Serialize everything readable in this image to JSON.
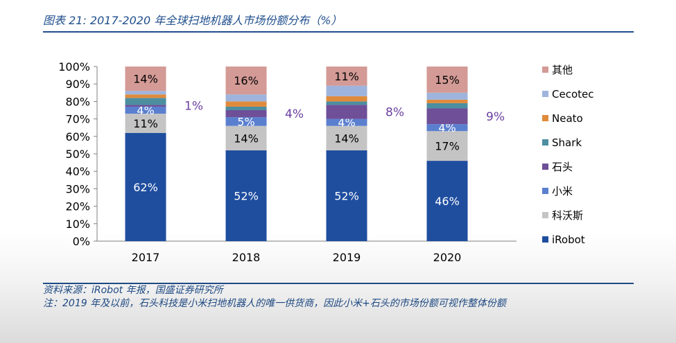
{
  "figure": {
    "title": "图表 21:  2017-2020 年全球扫地机器人市场份额分布（%）",
    "source": "资料来源：iRobot 年报，国盛证券研究所",
    "note": "注：2019 年及以前，石头科技是小米扫地机器人的唯一供货商，因此小米+石头的市场份额可视作整体份额"
  },
  "colors": {
    "iRobot": "#1f4e9f",
    "科沃斯": "#c4c4c4",
    "小米": "#5b7fcf",
    "石头": "#6f4f98",
    "Shark": "#4d8ea0",
    "Neato": "#e08b3b",
    "Cecotec": "#9fb4dc",
    "其他": "#d39a96",
    "axis_text": "#000000",
    "title": "#1f4e8c",
    "outside_label": "#6a3fa0"
  },
  "chart_data": {
    "type": "bar",
    "stacked": true,
    "categories": [
      "2017",
      "2018",
      "2019",
      "2020"
    ],
    "ylim": [
      0,
      100
    ],
    "yticks": [
      "0%",
      "10%",
      "20%",
      "30%",
      "40%",
      "50%",
      "60%",
      "70%",
      "80%",
      "90%",
      "100%"
    ],
    "legend_position": "right",
    "grid": false,
    "series": [
      {
        "name": "iRobot",
        "values": [
          62,
          52,
          52,
          46
        ],
        "labels": [
          "62%",
          "52%",
          "52%",
          "46%"
        ]
      },
      {
        "name": "科沃斯",
        "values": [
          11,
          14,
          14,
          17
        ],
        "labels": [
          "11%",
          "14%",
          "14%",
          "17%"
        ]
      },
      {
        "name": "小米",
        "values": [
          4,
          5,
          4,
          4
        ],
        "labels": [
          "4%",
          "5%",
          "4%",
          "4%"
        ]
      },
      {
        "name": "石头",
        "values": [
          1,
          4,
          8,
          9
        ],
        "labels": [
          "",
          "",
          "",
          ""
        ]
      },
      {
        "name": "Shark",
        "values": [
          4,
          2,
          2,
          3
        ],
        "labels": [
          "",
          "",
          "",
          ""
        ]
      },
      {
        "name": "Neato",
        "values": [
          2,
          3,
          3,
          2
        ],
        "labels": [
          "",
          "",
          "",
          ""
        ]
      },
      {
        "name": "Cecotec",
        "values": [
          2,
          4,
          6,
          4
        ],
        "labels": [
          "",
          "",
          "",
          ""
        ]
      },
      {
        "name": "其他",
        "values": [
          14,
          16,
          11,
          15
        ],
        "labels": [
          "14%",
          "16%",
          "11%",
          "15%"
        ]
      }
    ],
    "outside_labels": [
      "1%",
      "4%",
      "8%",
      "9%"
    ],
    "legend_order": [
      "其他",
      "Cecotec",
      "Neato",
      "Shark",
      "石头",
      "小米",
      "科沃斯",
      "iRobot"
    ]
  }
}
